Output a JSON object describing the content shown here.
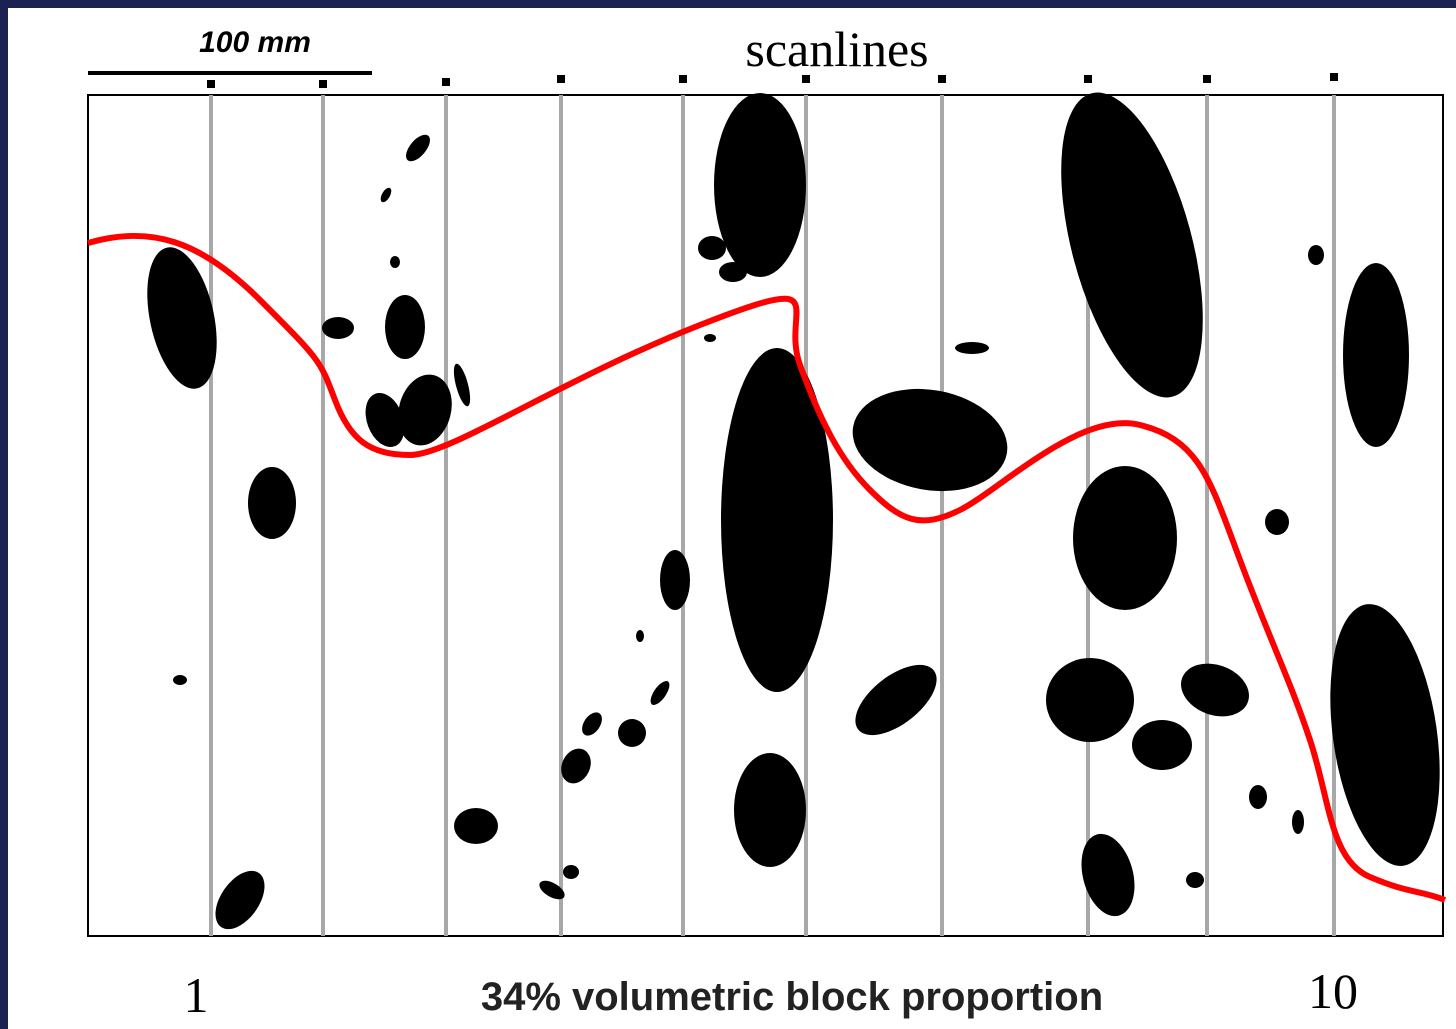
{
  "scale_bar": {
    "label": "100 mm"
  },
  "title": "scanlines",
  "labels": {
    "start": "1",
    "caption": "34% volumetric block proportion",
    "end": "10"
  }
}
